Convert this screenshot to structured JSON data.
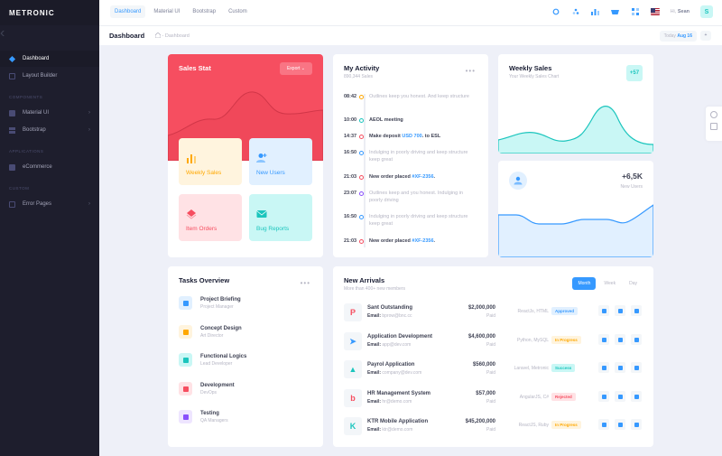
{
  "brand": "METRONIC",
  "sidebar": {
    "items_top": [
      {
        "label": "Dashboard",
        "icon": "diamond-icon"
      },
      {
        "label": "Layout Builder",
        "icon": "document-icon"
      }
    ],
    "sections": [
      {
        "title": "COMPONENTS",
        "items": [
          {
            "label": "Material UI",
            "icon": "box-icon"
          },
          {
            "label": "Bootstrap",
            "icon": "layers-icon"
          }
        ]
      },
      {
        "title": "APPLICATIONS",
        "items": [
          {
            "label": "eCommerce",
            "icon": "cart-icon"
          }
        ]
      },
      {
        "title": "CUSTOM",
        "items": [
          {
            "label": "Error Pages",
            "icon": "warning-icon"
          }
        ]
      }
    ]
  },
  "header": {
    "menu": [
      "Dashboard",
      "Material UI",
      "Bootstrap",
      "Custom"
    ],
    "greeting": "Hi,",
    "user": "Sean",
    "avatar_letter": "S"
  },
  "subheader": {
    "title": "Dashboard",
    "crumb": "- Dashboard",
    "date_label": "Today",
    "date_value": "Aug 16"
  },
  "sales_stat": {
    "title": "Sales Stat",
    "export": "Export",
    "tiles": [
      "Weekly Sales",
      "New Users",
      "Item Orders",
      "Bug Reports"
    ]
  },
  "activity": {
    "title": "My Activity",
    "subtitle": "890,344 Sales",
    "items": [
      {
        "time": "08:42",
        "color": "#ffa800",
        "text": "Outlines keep you honest. And keep structure",
        "bold": false
      },
      {
        "time": "10:00",
        "color": "#1bc5bd",
        "text": "AEOL meeting",
        "bold": true
      },
      {
        "time": "14:37",
        "color": "#f64e60",
        "text": "Make deposit ",
        "link": "USD 700",
        "after": ". to ESL",
        "bold": true
      },
      {
        "time": "16:50",
        "color": "#3699ff",
        "text": "Indulging in poorly driving and keep structure keep great",
        "bold": false
      },
      {
        "time": "21:03",
        "color": "#f64e60",
        "text": "New order placed ",
        "link": "#XF-2356",
        "after": ".",
        "bold": true
      },
      {
        "time": "23:07",
        "color": "#8950fc",
        "text": "Outlines keep and you honest. Indulging in poorly driving",
        "bold": false
      },
      {
        "time": "16:50",
        "color": "#3699ff",
        "text": "Indulging in poorly driving and keep structure keep great",
        "bold": false
      },
      {
        "time": "21:03",
        "color": "#f64e60",
        "text": "New order placed ",
        "link": "#XF-2356",
        "after": ".",
        "bold": true
      }
    ]
  },
  "weekly_sales": {
    "title": "Weekly Sales",
    "subtitle": "Your Weekly Sales Chart",
    "badge": "+57"
  },
  "new_users": {
    "value": "+6,5K",
    "label": "New Users"
  },
  "tasks": {
    "title": "Tasks Overview",
    "items": [
      {
        "name": "Project Briefing",
        "role": "Project Manager",
        "bg": "#e1f0ff",
        "fg": "#3699ff"
      },
      {
        "name": "Concept Design",
        "role": "Art Director",
        "bg": "#fff4de",
        "fg": "#ffa800"
      },
      {
        "name": "Functional Logics",
        "role": "Lead Developer",
        "bg": "#c9f7f5",
        "fg": "#1bc5bd"
      },
      {
        "name": "Development",
        "role": "DevOps",
        "bg": "#ffe2e5",
        "fg": "#f64e60"
      },
      {
        "name": "Testing",
        "role": "QA Managers",
        "bg": "#eee5ff",
        "fg": "#8950fc"
      }
    ]
  },
  "arrivals": {
    "title": "New Arrivals",
    "subtitle": "More than 400+ new members",
    "tabs": [
      "Month",
      "Week",
      "Day"
    ],
    "email_label": "Email:",
    "rows": [
      {
        "name": "Sant Outstanding",
        "email": "bprow@bnc.cc",
        "amount": "$2,000,000",
        "paid": "Paid",
        "tech": "ReactJs, HTML",
        "status": "Approved",
        "status_bg": "#e1f0ff",
        "status_fg": "#3699ff",
        "logo": "P",
        "logo_color": "#f64e60"
      },
      {
        "name": "Application Development",
        "email": "app@dev.com",
        "amount": "$4,600,000",
        "paid": "Paid",
        "tech": "Python, MySQL",
        "status": "In Progress",
        "status_bg": "#fff4de",
        "status_fg": "#ffa800",
        "logo": "➤",
        "logo_color": "#3699ff"
      },
      {
        "name": "Payrol Application",
        "email": "company@dev.com",
        "amount": "$560,000",
        "paid": "Paid",
        "tech": "Laravel, Metronic",
        "status": "Success",
        "status_bg": "#c9f7f5",
        "status_fg": "#1bc5bd",
        "logo": "▲",
        "logo_color": "#1bc5bd"
      },
      {
        "name": "HR Management System",
        "email": "hr@demo.com",
        "amount": "$57,000",
        "paid": "Paid",
        "tech": "AngularJS, C#",
        "status": "Rejected",
        "status_bg": "#ffe2e5",
        "status_fg": "#f64e60",
        "logo": "b",
        "logo_color": "#f64e60"
      },
      {
        "name": "KTR Mobile Application",
        "email": "ktr@demo.com",
        "amount": "$45,200,000",
        "paid": "Paid",
        "tech": "ReactJS, Ruby",
        "status": "In Progress",
        "status_bg": "#fff4de",
        "status_fg": "#ffa800",
        "logo": "K",
        "logo_color": "#1bc5bd"
      }
    ]
  }
}
